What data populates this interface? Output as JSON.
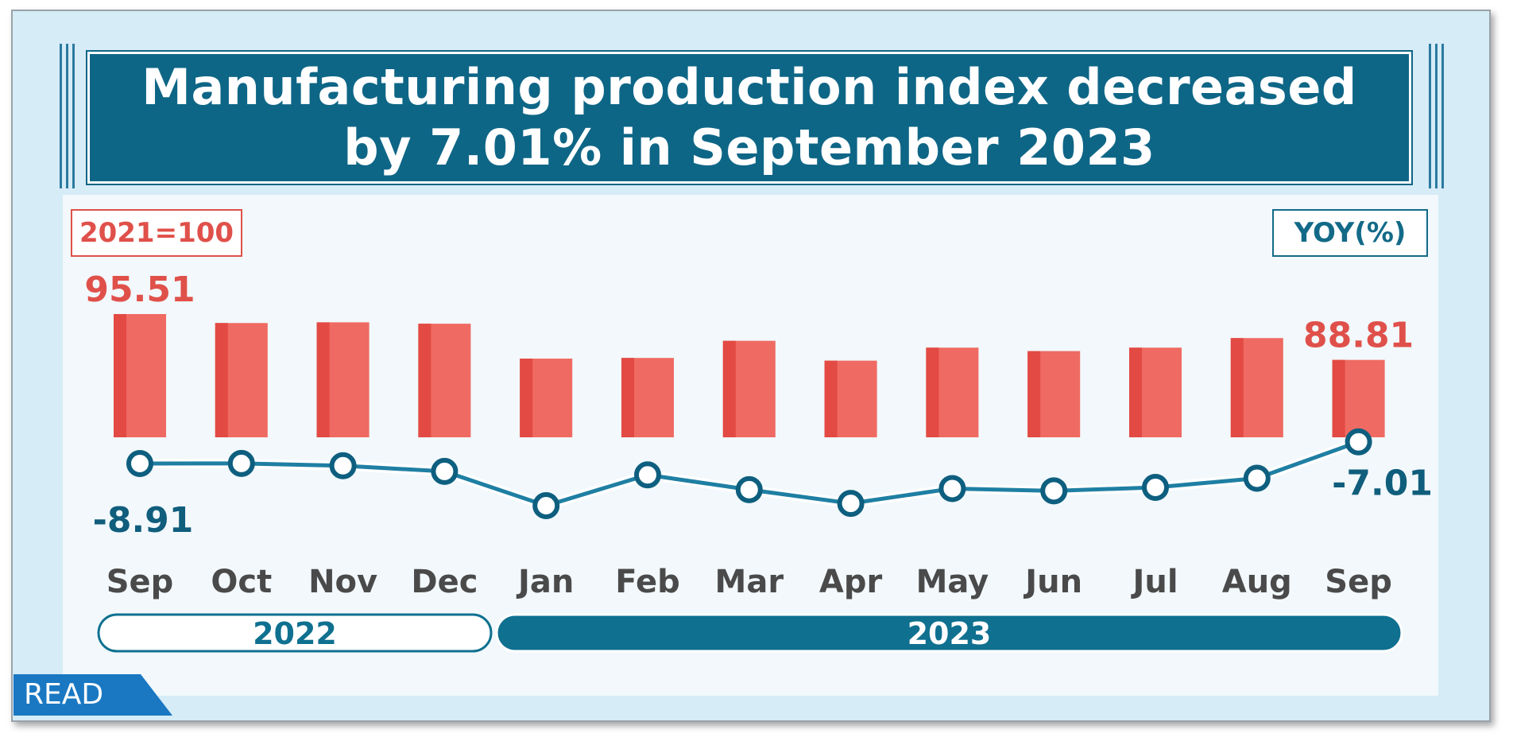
{
  "title": "Manufacturing  production index decreased by 7.01%  in September  2023",
  "title_lines": [
    "Manufacturing  production index decreased",
    "by 7.01%  in September  2023"
  ],
  "base_label": "2021=100",
  "yoy_label": "YOY(%)",
  "read_label": "READ",
  "chart_data": {
    "type": "bar",
    "categories": [
      "Sep",
      "Oct",
      "Nov",
      "Dec",
      "Jan",
      "Feb",
      "Mar",
      "Apr",
      "May",
      "Jun",
      "Jul",
      "Aug",
      "Sep"
    ],
    "series": [
      {
        "name": "2021=100",
        "kind": "bar",
        "values": [
          95.51,
          94.2,
          94.3,
          94.1,
          89.0,
          89.1,
          91.6,
          88.7,
          90.6,
          90.1,
          90.6,
          92.0,
          88.81
        ]
      },
      {
        "name": "YOY(%)",
        "kind": "line",
        "values": [
          -8.91,
          -8.9,
          -9.1,
          -9.6,
          -12.6,
          -9.9,
          -11.2,
          -12.4,
          -11.1,
          -11.3,
          -11.0,
          -10.2,
          -7.01
        ]
      }
    ],
    "bar_labels": [
      {
        "index": 0,
        "text": "95.51"
      },
      {
        "index": 12,
        "text": "88.81"
      }
    ],
    "line_labels": [
      {
        "index": 0,
        "text": "-8.91"
      },
      {
        "index": 12,
        "text": "-7.01"
      }
    ],
    "year_groups": [
      {
        "label": "2022",
        "from": 0,
        "to": 3
      },
      {
        "label": "2023",
        "from": 4,
        "to": 12
      }
    ],
    "colors": {
      "bar": "#ef6a62",
      "bar_dark": "#e24a43",
      "line": "#1f7fa3",
      "marker": "#0e5f7f",
      "bar_label": "#e0504a",
      "line_label": "#105d7c",
      "month": "#4a4a4a",
      "title_bg": "#0e6686"
    }
  }
}
